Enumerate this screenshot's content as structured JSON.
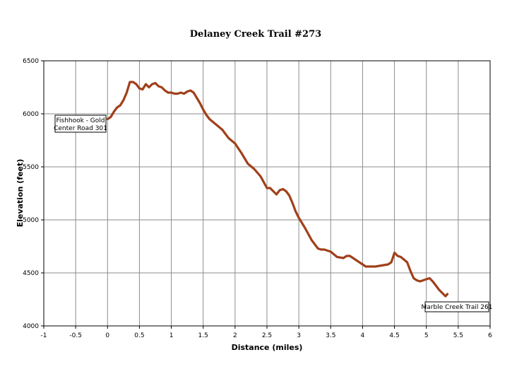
{
  "chart_data": {
    "type": "line",
    "title": "Delaney Creek Trail #273",
    "xlabel": "Distance (miles)",
    "ylabel": "Elevation (feet)",
    "xlim": [
      -1,
      6
    ],
    "ylim": [
      4000,
      6500
    ],
    "x_ticks": [
      "-1",
      "-0.5",
      "0",
      "0.5",
      "1",
      "1.5",
      "2",
      "2.5",
      "3",
      "3.5",
      "4",
      "4.5",
      "5",
      "5.5",
      "6"
    ],
    "y_ticks": [
      "4000",
      "4500",
      "5000",
      "5500",
      "6000",
      "6500"
    ],
    "grid": true,
    "legend": "none",
    "series": [
      {
        "color": "#a0401a",
        "x": [
          0,
          0.05,
          0.1,
          0.15,
          0.2,
          0.25,
          0.3,
          0.35,
          0.4,
          0.45,
          0.5,
          0.55,
          0.6,
          0.65,
          0.7,
          0.75,
          0.8,
          0.85,
          0.9,
          0.95,
          1.0,
          1.05,
          1.1,
          1.15,
          1.2,
          1.25,
          1.3,
          1.35,
          1.4,
          1.45,
          1.5,
          1.55,
          1.6,
          1.7,
          1.8,
          1.9,
          2.0,
          2.1,
          2.2,
          2.3,
          2.4,
          2.5,
          2.55,
          2.6,
          2.65,
          2.7,
          2.75,
          2.8,
          2.85,
          2.9,
          2.95,
          3.0,
          3.1,
          3.2,
          3.3,
          3.35,
          3.4,
          3.5,
          3.6,
          3.7,
          3.75,
          3.8,
          3.9,
          4.0,
          4.05,
          4.1,
          4.2,
          4.3,
          4.4,
          4.45,
          4.5,
          4.55,
          4.6,
          4.7,
          4.75,
          4.8,
          4.85,
          4.9,
          5.0,
          5.05,
          5.1,
          5.15,
          5.2,
          5.25,
          5.3,
          5.33
        ],
        "y": [
          5950,
          5970,
          6020,
          6060,
          6080,
          6130,
          6200,
          6300,
          6300,
          6280,
          6240,
          6230,
          6280,
          6250,
          6280,
          6290,
          6260,
          6250,
          6220,
          6200,
          6200,
          6190,
          6190,
          6200,
          6190,
          6210,
          6220,
          6200,
          6150,
          6100,
          6040,
          5990,
          5950,
          5900,
          5850,
          5770,
          5720,
          5630,
          5530,
          5480,
          5410,
          5300,
          5300,
          5270,
          5240,
          5280,
          5290,
          5270,
          5230,
          5160,
          5080,
          5020,
          4920,
          4810,
          4730,
          4720,
          4720,
          4700,
          4650,
          4640,
          4660,
          4660,
          4620,
          4580,
          4560,
          4560,
          4560,
          4570,
          4580,
          4600,
          4690,
          4660,
          4650,
          4600,
          4520,
          4450,
          4430,
          4420,
          4440,
          4450,
          4420,
          4380,
          4340,
          4310,
          4280,
          4300
        ]
      }
    ],
    "annotations": [
      {
        "lines": [
          "Fishhook - Gold",
          "Center Road 301"
        ]
      },
      {
        "lines": [
          "Marble Creek Trail 261"
        ]
      }
    ]
  }
}
